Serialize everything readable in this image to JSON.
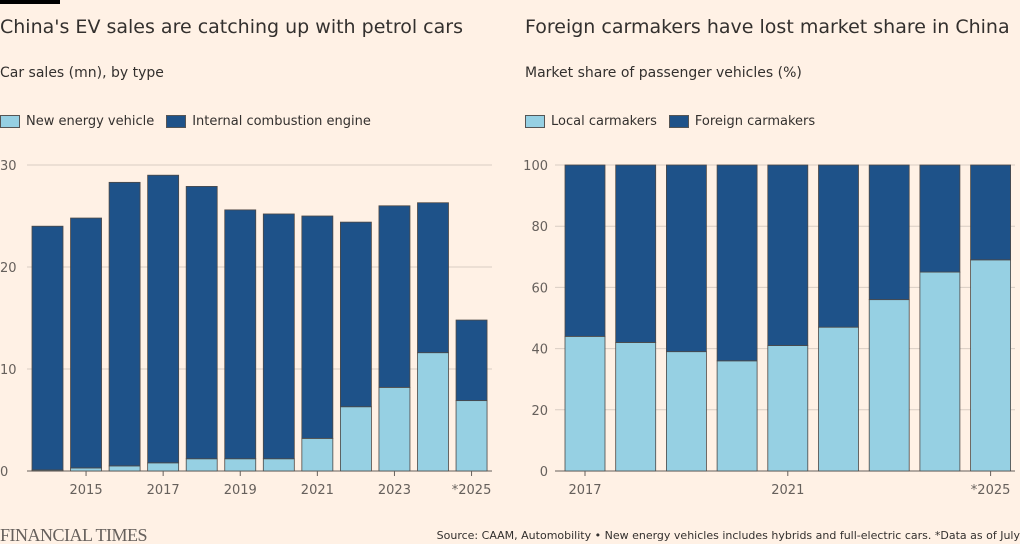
{
  "chart_data": [
    {
      "type": "bar",
      "stacked": true,
      "title": "China's EV sales are catching up with petrol cars",
      "subtitle": "Car sales (mn), by type",
      "categories": [
        "2014",
        "2015",
        "2016",
        "2017",
        "2018",
        "2019",
        "2020",
        "2021",
        "2022",
        "2023",
        "2024",
        "*2025"
      ],
      "tick_labels": [
        "2015",
        "2017",
        "2019",
        "2021",
        "2023",
        "*2025"
      ],
      "y_ticks": [
        0,
        10,
        20,
        30
      ],
      "ylim": [
        0,
        30
      ],
      "grid": true,
      "legend_position": "top-left",
      "series": [
        {
          "name": "New energy vehicle",
          "color": "#96d0e3",
          "values": [
            0.1,
            0.3,
            0.5,
            0.8,
            1.2,
            1.2,
            1.2,
            3.2,
            6.3,
            8.2,
            11.6,
            6.9
          ]
        },
        {
          "name": "Internal combustion engine",
          "color": "#1e5289",
          "values": [
            23.9,
            24.5,
            27.8,
            28.2,
            26.7,
            24.4,
            24.0,
            21.8,
            18.1,
            17.8,
            14.7,
            7.9
          ]
        }
      ]
    },
    {
      "type": "bar",
      "stacked": true,
      "title": "Foreign carmakers have lost market share in China",
      "subtitle": "Market share of passenger vehicles (%)",
      "categories": [
        "2017",
        "2018",
        "2019",
        "2020",
        "2021",
        "2022",
        "2023",
        "2024",
        "*2025"
      ],
      "tick_labels": [
        "2017",
        "2021",
        "*2025"
      ],
      "y_ticks": [
        0,
        20,
        40,
        60,
        80,
        100
      ],
      "ylim": [
        0,
        100
      ],
      "grid": true,
      "legend_position": "top-left",
      "series": [
        {
          "name": "Local carmakers",
          "color": "#96d0e3",
          "values": [
            44,
            42,
            39,
            36,
            41,
            47,
            56,
            65,
            69
          ]
        },
        {
          "name": "Foreign carmakers",
          "color": "#1e5289",
          "values": [
            56,
            58,
            61,
            64,
            59,
            53,
            44,
            35,
            31
          ]
        }
      ]
    }
  ],
  "footer": {
    "logo": "FINANCIAL TIMES",
    "source": "Source: CAAM, Automobility • New energy vehicles includes hybrids and full-electric cars. *Data as of July"
  }
}
